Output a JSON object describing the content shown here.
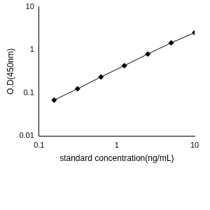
{
  "chart_data": {
    "type": "line",
    "xlabel": "standard concentration(ng/mL)",
    "ylabel": "O.D(450nm)",
    "x": [
      0.156,
      0.3125,
      0.625,
      1.25,
      2.5,
      5,
      10
    ],
    "values": [
      0.068,
      0.125,
      0.235,
      0.43,
      0.8,
      1.45,
      2.5
    ],
    "color": "#000000",
    "marker": "diamond",
    "line_style": "solid",
    "log": true,
    "grid": false,
    "xlim": [
      0.1,
      10
    ],
    "xticks": [
      0.1,
      1,
      10
    ],
    "ylim": [
      0.01,
      10
    ],
    "yticks": [
      0.01,
      0.1,
      1,
      10
    ]
  }
}
